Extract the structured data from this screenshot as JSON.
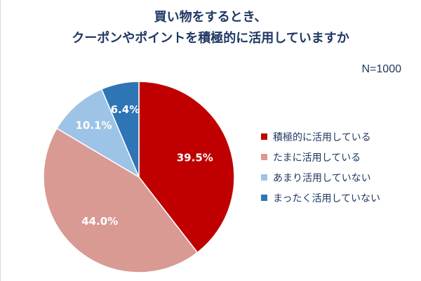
{
  "header": {
    "title_line1": "買い物をするとき、",
    "title_line2": "クーポンやポイントを積極的に活用していますか",
    "sample_size": "N=1000"
  },
  "chart_data": {
    "type": "pie",
    "title": "買い物をするとき、クーポンやポイントを積極的に活用していますか",
    "annotation": "N=1000",
    "legend_position": "right",
    "slices": [
      {
        "label": "積極的に活用している",
        "value": 39.5,
        "display": "39.5%",
        "color": "#c00000"
      },
      {
        "label": "たまに活用している",
        "value": 44.0,
        "display": "44.0%",
        "color": "#d99a94"
      },
      {
        "label": "あまり活用していない",
        "value": 10.1,
        "display": "10.1%",
        "color": "#9dc3e6"
      },
      {
        "label": "まったく活用していない",
        "value": 6.4,
        "display": "6.4%",
        "color": "#2e75b6"
      }
    ]
  }
}
